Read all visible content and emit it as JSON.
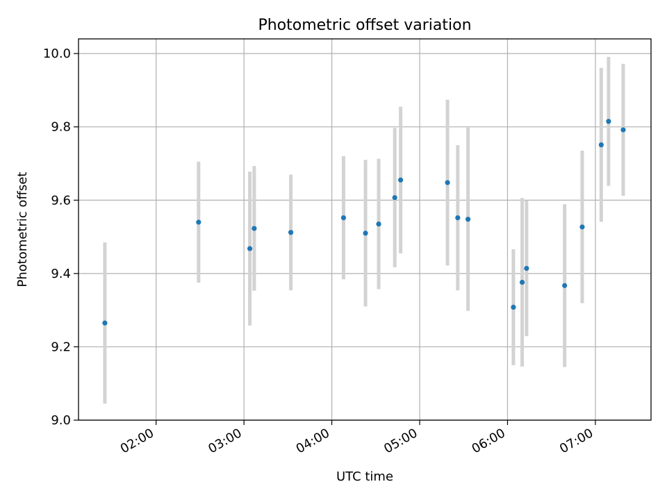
{
  "chart_data": {
    "type": "scatter",
    "title": "Photometric offset variation",
    "xlabel": "UTC time",
    "ylabel": "Photometric offset",
    "x_unit": "UTC time (HH:MM)",
    "xlim": [
      "01:07",
      "07:38"
    ],
    "ylim": [
      9.0,
      10.04
    ],
    "x_ticks": [
      "02:00",
      "03:00",
      "04:00",
      "05:00",
      "06:00",
      "07:00"
    ],
    "y_ticks": [
      "9.0",
      "9.2",
      "9.4",
      "9.6",
      "9.8",
      "10.0"
    ],
    "grid": true,
    "marker_color": "#1f77b4",
    "errorbar_color": "#d3d3d3",
    "points": [
      {
        "x": "01:25",
        "y": 9.265,
        "err": 0.22
      },
      {
        "x": "02:29",
        "y": 9.54,
        "err": 0.165
      },
      {
        "x": "03:04",
        "y": 9.468,
        "err": 0.21
      },
      {
        "x": "03:07",
        "y": 9.523,
        "err": 0.17
      },
      {
        "x": "03:32",
        "y": 9.512,
        "err": 0.158
      },
      {
        "x": "04:08",
        "y": 9.552,
        "err": 0.168
      },
      {
        "x": "04:23",
        "y": 9.51,
        "err": 0.2
      },
      {
        "x": "04:32",
        "y": 9.535,
        "err": 0.178
      },
      {
        "x": "04:43",
        "y": 9.607,
        "err": 0.19
      },
      {
        "x": "04:47",
        "y": 9.655,
        "err": 0.2
      },
      {
        "x": "05:19",
        "y": 9.648,
        "err": 0.226
      },
      {
        "x": "05:26",
        "y": 9.552,
        "err": 0.198
      },
      {
        "x": "05:33",
        "y": 9.548,
        "err": 0.25
      },
      {
        "x": "06:04",
        "y": 9.308,
        "err": 0.158
      },
      {
        "x": "06:10",
        "y": 9.376,
        "err": 0.23
      },
      {
        "x": "06:13",
        "y": 9.414,
        "err": 0.185
      },
      {
        "x": "06:39",
        "y": 9.367,
        "err": 0.222
      },
      {
        "x": "06:51",
        "y": 9.527,
        "err": 0.208
      },
      {
        "x": "07:04",
        "y": 9.751,
        "err": 0.21
      },
      {
        "x": "07:09",
        "y": 9.815,
        "err": 0.176
      },
      {
        "x": "07:19",
        "y": 9.792,
        "err": 0.18
      }
    ]
  }
}
